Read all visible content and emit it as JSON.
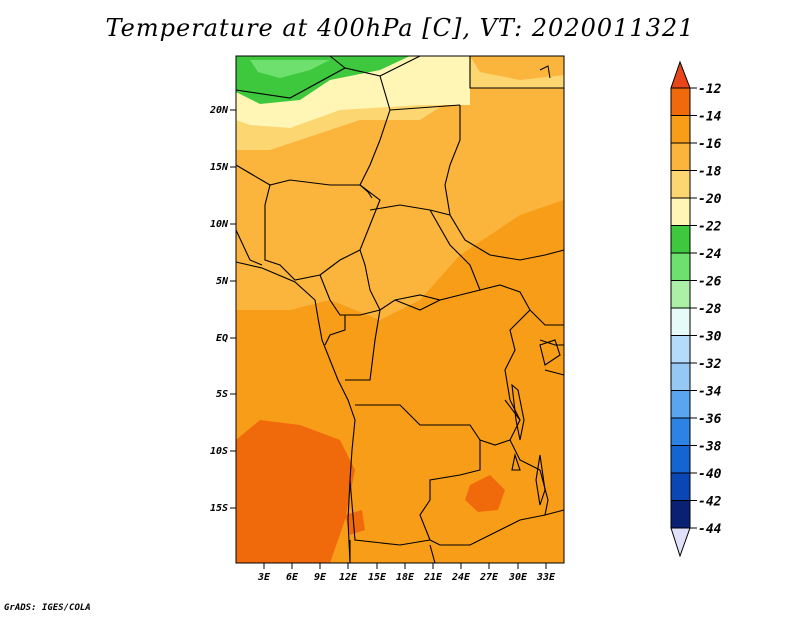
{
  "title": "Temperature at 400hPa [C], VT: 2020011321",
  "footer": "GrADS: IGES/COLA",
  "map": {
    "lat_labels": [
      "20N",
      "15N",
      "10N",
      "5N",
      "EQ",
      "5S",
      "10S",
      "15S"
    ],
    "lon_labels": [
      "3E",
      "6E",
      "9E",
      "12E",
      "15E",
      "18E",
      "21E",
      "24E",
      "27E",
      "30E",
      "33E"
    ]
  },
  "colorbar": {
    "levels": [
      "-12",
      "-14",
      "-16",
      "-18",
      "-20",
      "-22",
      "-24",
      "-26",
      "-28",
      "-30",
      "-32",
      "-34",
      "-36",
      "-38",
      "-40",
      "-42",
      "-44"
    ],
    "colors": [
      "#e8451a",
      "#f06a0c",
      "#f79d18",
      "#fbb53c",
      "#fbd671",
      "#fff5b4",
      "#3ec83e",
      "#6ee06e",
      "#abf0a6",
      "#e6fbf8",
      "#b4dcfa",
      "#96c8f6",
      "#5aa5f0",
      "#2d82e6",
      "#1464d2",
      "#0a46b4",
      "#0a2073"
    ],
    "tip_top_color": "#e8451a",
    "tip_bottom_color": "#e1e1fc"
  }
}
